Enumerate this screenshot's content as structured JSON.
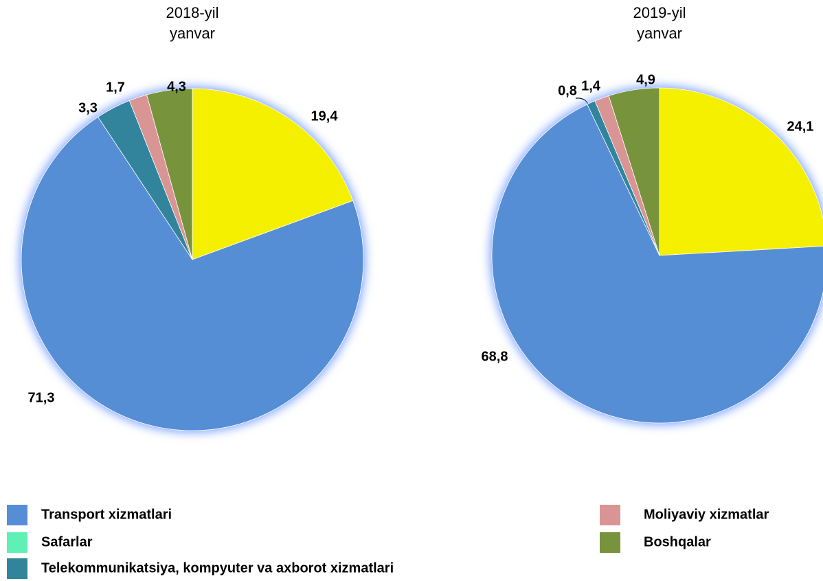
{
  "chart_data": [
    {
      "type": "pie",
      "title": [
        "2018-yil",
        "yanvar"
      ],
      "values": [
        19.4,
        71.3,
        3.3,
        1.7,
        4.3
      ],
      "value_labels": [
        "19,4",
        "71,3",
        "3,3",
        "1,7",
        "4,3"
      ],
      "colors": [
        "#f5ef00",
        "#558ed5",
        "#31849b",
        "#d99594",
        "#77933c"
      ]
    },
    {
      "type": "pie",
      "title": [
        "2019-yil",
        "yanvar"
      ],
      "values": [
        24.1,
        68.8,
        0.8,
        1.4,
        4.9
      ],
      "value_labels": [
        "24,1",
        "68,8",
        "0,8",
        "1,4",
        "4,9"
      ],
      "colors": [
        "#f5ef00",
        "#558ed5",
        "#31849b",
        "#d99594",
        "#77933c"
      ]
    }
  ],
  "legend": {
    "entries": [
      {
        "name": "Transport xizmatlari",
        "color": "#558ed5"
      },
      {
        "name": "Safarlar",
        "color": "#5ef0b4"
      },
      {
        "name": "Telekommunikatsiya, kompyuter va axborot xizmatlari",
        "color": "#31849b"
      },
      {
        "name": "Moliyaviy xizmatlar",
        "color": "#d99594"
      },
      {
        "name": "Boshqalar",
        "color": "#77933c"
      }
    ]
  }
}
